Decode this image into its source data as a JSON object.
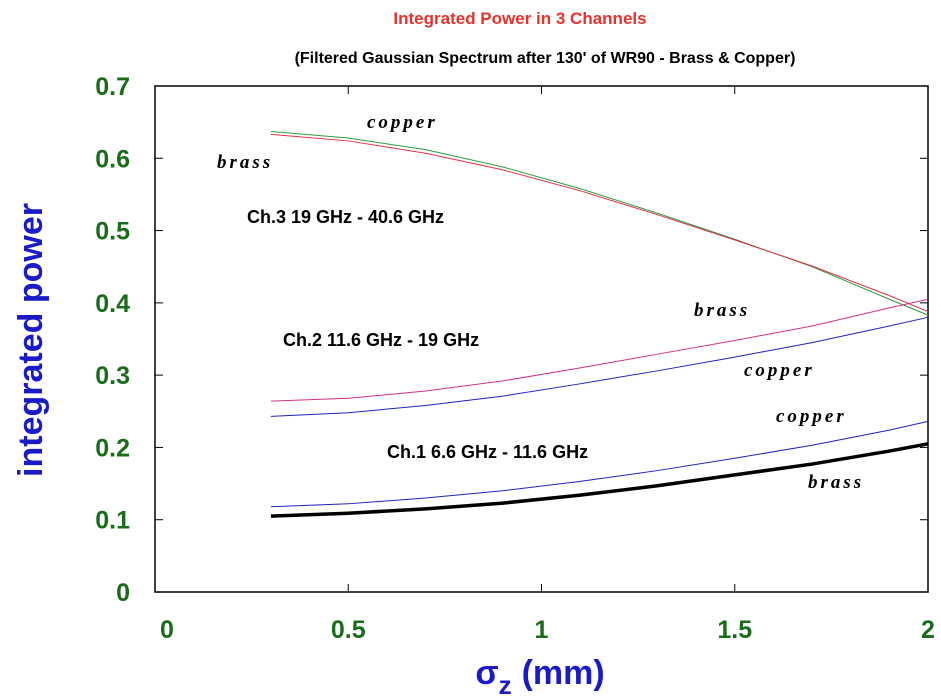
{
  "chart_data": {
    "type": "line",
    "title": "Integrated Power in 3 Channels",
    "subtitle": "(Filtered Gaussian Spectrum after 130' of WR90 - Brass & Copper)",
    "x_label": {
      "symbol": "σ",
      "subscript": "z",
      "unit": "(mm)"
    },
    "y_label": "integrated power",
    "x": [
      0.3,
      0.5,
      0.7,
      0.9,
      1.1,
      1.3,
      1.5,
      1.7,
      1.9,
      2.0
    ],
    "series": [
      {
        "name": "copper",
        "color": "#2e9e3e",
        "width": 1,
        "values": [
          0.637,
          0.628,
          0.612,
          0.588,
          0.558,
          0.524,
          0.488,
          0.45,
          0.405,
          0.383
        ]
      },
      {
        "name": "brass",
        "color": "#e0304a",
        "width": 1,
        "values": [
          0.633,
          0.624,
          0.607,
          0.584,
          0.555,
          0.522,
          0.487,
          0.451,
          0.41,
          0.388
        ]
      },
      {
        "name": "brass",
        "color": "#d0308a",
        "width": 1,
        "values": [
          0.264,
          0.268,
          0.278,
          0.292,
          0.31,
          0.329,
          0.348,
          0.368,
          0.393,
          0.405
        ]
      },
      {
        "name": "copper",
        "color": "#2020c0",
        "width": 1,
        "values": [
          0.243,
          0.248,
          0.258,
          0.271,
          0.288,
          0.306,
          0.325,
          0.345,
          0.368,
          0.38
        ]
      },
      {
        "name": "copper",
        "color": "#2020c0",
        "width": 1,
        "values": [
          0.118,
          0.122,
          0.13,
          0.14,
          0.153,
          0.168,
          0.185,
          0.203,
          0.224,
          0.236
        ]
      },
      {
        "name": "brass",
        "color": "#000000",
        "width": 3.5,
        "values": [
          0.105,
          0.109,
          0.115,
          0.123,
          0.134,
          0.147,
          0.162,
          0.177,
          0.195,
          0.205
        ]
      }
    ],
    "annotations": [
      "Ch.3 19 GHz - 40.6 GHz",
      "Ch.2 11.6 GHz - 19 GHz",
      "Ch.1 6.6 GHz - 11.6 GHz"
    ],
    "xlim": [
      0,
      2
    ],
    "ylim": [
      0,
      0.7
    ],
    "xticks": [
      0,
      0.5,
      1,
      1.5,
      2
    ],
    "yticks": [
      0,
      0.1,
      0.2,
      0.3,
      0.4,
      0.5,
      0.6,
      0.7
    ]
  }
}
